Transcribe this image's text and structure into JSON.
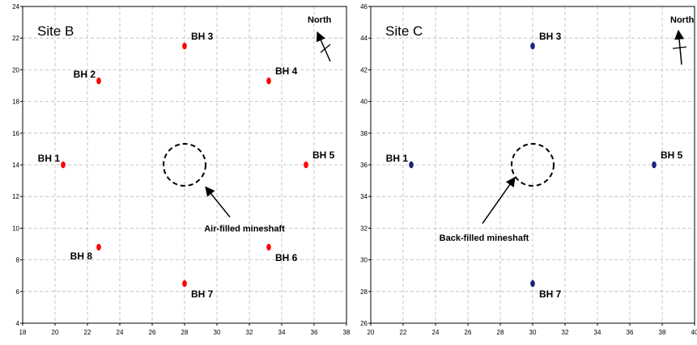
{
  "chart_data": [
    {
      "type": "scatter",
      "title": "Site B",
      "xlim": [
        18,
        38
      ],
      "ylim": [
        4,
        24
      ],
      "x_ticks": [
        18,
        20,
        22,
        24,
        26,
        28,
        30,
        32,
        34,
        36,
        38
      ],
      "y_ticks": [
        4,
        6,
        8,
        10,
        12,
        14,
        16,
        18,
        20,
        22,
        24
      ],
      "grid": true,
      "marker_color": "#ff0000",
      "points": [
        {
          "label": "BH 1",
          "x": 20.5,
          "y": 14.0,
          "label_pos": "upper-left"
        },
        {
          "label": "BH 2",
          "x": 22.7,
          "y": 19.3,
          "label_pos": "upper-left"
        },
        {
          "label": "BH 3",
          "x": 28.0,
          "y": 21.5,
          "label_pos": "upper-right"
        },
        {
          "label": "BH 4",
          "x": 33.2,
          "y": 19.3,
          "label_pos": "upper-right"
        },
        {
          "label": "BH 5",
          "x": 35.5,
          "y": 14.0,
          "label_pos": "upper-right"
        },
        {
          "label": "BH 6",
          "x": 33.2,
          "y": 8.8,
          "label_pos": "lower-right"
        },
        {
          "label": "BH 7",
          "x": 28.0,
          "y": 6.5,
          "label_pos": "lower-right"
        },
        {
          "label": "BH 8",
          "x": 22.7,
          "y": 8.8,
          "label_pos": "lower-left"
        }
      ],
      "mineshaft": {
        "label": "Air-filled mineshaft",
        "cx": 28.0,
        "cy": 14.0,
        "r": 1.3,
        "label_x": 31.7,
        "label_y": 9.8,
        "arrow_from": [
          30.8,
          10.7
        ],
        "arrow_to": [
          29.3,
          12.6
        ]
      },
      "north": {
        "label": "North",
        "direction": "north-west"
      }
    },
    {
      "type": "scatter",
      "title": "Site C",
      "xlim": [
        20,
        40
      ],
      "ylim": [
        26,
        46
      ],
      "x_ticks": [
        20,
        22,
        24,
        26,
        28,
        30,
        32,
        34,
        36,
        38,
        40
      ],
      "y_ticks": [
        26,
        28,
        30,
        32,
        34,
        36,
        38,
        40,
        42,
        44,
        46
      ],
      "grid": true,
      "marker_color": "#1a237e",
      "points": [
        {
          "label": "BH 1",
          "x": 22.5,
          "y": 36.0,
          "label_pos": "upper-left"
        },
        {
          "label": "BH 3",
          "x": 30.0,
          "y": 43.5,
          "label_pos": "upper-right"
        },
        {
          "label": "BH 5",
          "x": 37.5,
          "y": 36.0,
          "label_pos": "upper-right"
        },
        {
          "label": "BH 7",
          "x": 30.0,
          "y": 28.5,
          "label_pos": "lower-right"
        }
      ],
      "mineshaft": {
        "label": "Back-filled mineshaft",
        "cx": 30.0,
        "cy": 36.0,
        "r": 1.3,
        "label_x": 27.0,
        "label_y": 31.2,
        "arrow_from": [
          26.9,
          32.3
        ],
        "arrow_to": [
          28.9,
          35.2
        ]
      },
      "north": {
        "label": "North",
        "direction": "north"
      }
    }
  ]
}
